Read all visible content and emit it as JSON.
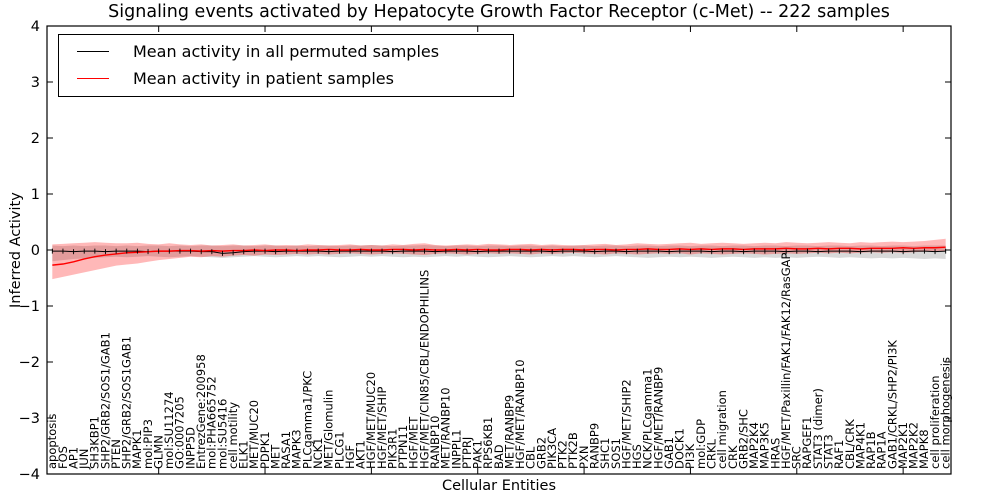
{
  "title": "Signaling events activated by Hepatocyte Growth Factor Receptor (c-Met) -- 222 samples",
  "legend": {
    "items": [
      {
        "label": "Mean activity in all permuted samples",
        "color": "#000000"
      },
      {
        "label": "Mean activity in patient samples",
        "color": "#ff0000"
      }
    ]
  },
  "axes": {
    "x_label": "Cellular Entities",
    "y_label": "Inferred Activity"
  },
  "chart_data": {
    "type": "line",
    "title": "Signaling events activated by Hepatocyte Growth Factor Receptor (c-Met) -- 222 samples",
    "xlabel": "Cellular Entities",
    "ylabel": "Inferred Activity",
    "ylim": [
      -4,
      4
    ],
    "y_ticks": [
      4,
      3,
      2,
      1,
      0,
      -1,
      -2,
      -3,
      -4
    ],
    "x_tick_indices": [
      10,
      20,
      30,
      40,
      50,
      60,
      70,
      80
    ],
    "grid": false,
    "legend_position": "upper left",
    "categories": [
      "apoptosis",
      "FOS",
      "AP1",
      "JUN",
      "SH3KBP1",
      "SHP2/GRB2/SOS1/GAB1",
      "PTEN",
      "SHP2/GRB2/SOS1GAB1",
      "MAPK1",
      "mol:PIP3",
      "GLMN",
      "mol:SU11274",
      "GO:0007205",
      "INPP5D",
      "EntrezGene:200958",
      "mol:PHA665752",
      "mol:SU5416",
      "cell motility",
      "ELK1",
      "MET/MUC20",
      "PDPK1",
      "MET",
      "RASA1",
      "MAPK3",
      "PLCgamma1/PKC",
      "NCK1",
      "MET/Glomulin",
      "PLCG1",
      "HGF",
      "AKT1",
      "HGF/MET/MUC20",
      "HGF/MET/SHIP",
      "PIK3R1",
      "PTPN11",
      "HGF/MET",
      "HGF/MET/CIN85/CBL/ENDOPHILINS",
      "RANBP10",
      "MET/RANBP10",
      "INPPL1",
      "PTPRJ",
      "PAK1",
      "RPS6KB1",
      "BAD",
      "MET/RANBP9",
      "HGF/MET/RANBP10",
      "CBL",
      "GRB2",
      "PIK3CA",
      "PTK2",
      "PTK2B",
      "PXN",
      "RANBP9",
      "SHC1",
      "SOS1",
      "HGF/MET/SHIP2",
      "HGS",
      "NCK/PLCgamma1",
      "HGF/MET/RANBP9",
      "GAB1",
      "DOCK1",
      "PI3K",
      "mol:GDP",
      "CRKL",
      "cell migration",
      "CRK",
      "GRB2/SHC",
      "MAP2K4",
      "MAP3K5",
      "HRAS",
      "HGF/MET/Paxillin/FAK1/FAK12/RasGAP",
      "SRC",
      "RAPGEF1",
      "STAT3 (dimer)",
      "STAT3",
      "RAF1",
      "CBL/CRK",
      "MAP4K1",
      "RAP1B",
      "RAP1A",
      "GAB1/CRKL/SHP2/PI3K",
      "MAP2K1",
      "MAP2K2",
      "MAPK8",
      "cell proliferation",
      "cell morphogenesis"
    ],
    "series": [
      {
        "name": "Mean activity in all permuted samples",
        "color": "#000000",
        "marker": "|",
        "values": [
          -0.02,
          -0.02,
          -0.03,
          -0.02,
          -0.02,
          -0.03,
          -0.02,
          -0.02,
          -0.02,
          -0.03,
          -0.02,
          -0.02,
          -0.02,
          -0.02,
          -0.03,
          -0.03,
          -0.06,
          -0.05,
          -0.03,
          -0.02,
          -0.02,
          -0.03,
          -0.02,
          -0.02,
          -0.02,
          -0.02,
          -0.03,
          -0.02,
          -0.02,
          -0.02,
          -0.02,
          -0.02,
          -0.03,
          -0.02,
          -0.02,
          -0.02,
          -0.03,
          -0.02,
          -0.02,
          -0.02,
          -0.03,
          -0.02,
          -0.02,
          -0.02,
          -0.02,
          -0.02,
          -0.02,
          -0.03,
          -0.02,
          -0.02,
          -0.02,
          -0.03,
          -0.02,
          -0.02,
          -0.03,
          -0.02,
          -0.02,
          -0.02,
          -0.03,
          -0.02,
          -0.02,
          -0.02,
          -0.03,
          -0.02,
          -0.02,
          -0.03,
          -0.02,
          -0.02,
          -0.02,
          -0.03,
          -0.02,
          -0.02,
          -0.03,
          -0.02,
          -0.02,
          -0.02,
          -0.03,
          -0.02,
          -0.02,
          -0.02,
          -0.03,
          -0.02,
          -0.02,
          -0.03,
          -0.02
        ]
      },
      {
        "name": "Mean activity in patient samples",
        "color": "#ff0000",
        "marker": null,
        "values": [
          -0.27,
          -0.25,
          -0.21,
          -0.16,
          -0.12,
          -0.09,
          -0.07,
          -0.05,
          -0.04,
          -0.03,
          -0.02,
          -0.02,
          -0.01,
          -0.01,
          -0.02,
          -0.01,
          -0.02,
          -0.01,
          -0.01,
          0.0,
          -0.01,
          0.0,
          0.0,
          -0.01,
          0.0,
          0.0,
          0.01,
          0.0,
          0.0,
          0.01,
          0.0,
          0.0,
          0.01,
          0.01,
          0.0,
          0.01,
          0.0,
          0.0,
          0.01,
          0.0,
          0.01,
          0.0,
          0.0,
          0.01,
          0.01,
          0.0,
          0.01,
          0.0,
          0.01,
          0.01,
          0.0,
          0.01,
          0.01,
          0.0,
          0.01,
          0.01,
          0.02,
          0.01,
          0.01,
          0.02,
          0.01,
          0.02,
          0.01,
          0.02,
          0.02,
          0.01,
          0.02,
          0.02,
          0.02,
          0.03,
          0.02,
          0.02,
          0.03,
          0.02,
          0.03,
          0.03,
          0.02,
          0.03,
          0.03,
          0.03,
          0.04,
          0.03,
          0.04,
          0.04,
          0.05
        ]
      }
    ],
    "bands": [
      {
        "name": "permuted-std-band",
        "color": "#000000",
        "opacity": 0.15,
        "upper": [
          0.08,
          0.07,
          0.08,
          0.07,
          0.08,
          0.08,
          0.07,
          0.08,
          0.07,
          0.08,
          0.08,
          0.07,
          0.08,
          0.07,
          0.08,
          0.08,
          0.07,
          0.08,
          0.08,
          0.07,
          0.08,
          0.08,
          0.07,
          0.08,
          0.07,
          0.08,
          0.08,
          0.07,
          0.08,
          0.08,
          0.09,
          0.08,
          0.07,
          0.08,
          0.08,
          0.09,
          0.08,
          0.07,
          0.08,
          0.08,
          0.07,
          0.08,
          0.08,
          0.07,
          0.08,
          0.08,
          0.07,
          0.08,
          0.07,
          0.08,
          0.08,
          0.07,
          0.08,
          0.08,
          0.07,
          0.08,
          0.08,
          0.07,
          0.08,
          0.08,
          0.07,
          0.08,
          0.08,
          0.07,
          0.08,
          0.08,
          0.07,
          0.08,
          0.08,
          0.07,
          0.08,
          0.08,
          0.07,
          0.08,
          0.08,
          0.07,
          0.08,
          0.08,
          0.07,
          0.08,
          0.08,
          0.07,
          0.08,
          0.08,
          0.08
        ],
        "lower": [
          -0.2,
          -0.18,
          -0.16,
          -0.15,
          -0.14,
          -0.13,
          -0.12,
          -0.13,
          -0.12,
          -0.11,
          -0.12,
          -0.13,
          -0.12,
          -0.11,
          -0.12,
          -0.13,
          -0.14,
          -0.13,
          -0.12,
          -0.11,
          -0.12,
          -0.13,
          -0.12,
          -0.11,
          -0.12,
          -0.11,
          -0.12,
          -0.13,
          -0.12,
          -0.11,
          -0.12,
          -0.11,
          -0.12,
          -0.13,
          -0.12,
          -0.13,
          -0.12,
          -0.11,
          -0.12,
          -0.11,
          -0.12,
          -0.13,
          -0.12,
          -0.11,
          -0.12,
          -0.13,
          -0.12,
          -0.11,
          -0.12,
          -0.11,
          -0.12,
          -0.13,
          -0.12,
          -0.11,
          -0.12,
          -0.13,
          -0.14,
          -0.13,
          -0.12,
          -0.13,
          -0.12,
          -0.13,
          -0.14,
          -0.13,
          -0.12,
          -0.13,
          -0.14,
          -0.13,
          -0.14,
          -0.13,
          -0.14,
          -0.13,
          -0.12,
          -0.13,
          -0.14,
          -0.13,
          -0.14,
          -0.15,
          -0.14,
          -0.15,
          -0.14,
          -0.15,
          -0.16,
          -0.15,
          -0.16
        ]
      },
      {
        "name": "patient-std-band",
        "color": "#ff0000",
        "opacity": 0.28,
        "upper": [
          0.1,
          0.11,
          0.12,
          0.13,
          0.14,
          0.13,
          0.12,
          0.12,
          0.13,
          0.11,
          0.1,
          0.12,
          0.1,
          0.09,
          0.1,
          0.08,
          0.09,
          0.1,
          0.08,
          0.09,
          0.1,
          0.08,
          0.09,
          0.08,
          0.1,
          0.09,
          0.08,
          0.09,
          0.1,
          0.08,
          0.09,
          0.08,
          0.1,
          0.09,
          0.11,
          0.12,
          0.09,
          0.08,
          0.09,
          0.1,
          0.09,
          0.11,
          0.1,
          0.09,
          0.1,
          0.11,
          0.09,
          0.1,
          0.09,
          0.08,
          0.09,
          0.1,
          0.11,
          0.09,
          0.1,
          0.12,
          0.11,
          0.1,
          0.11,
          0.12,
          0.13,
          0.11,
          0.12,
          0.13,
          0.12,
          0.11,
          0.12,
          0.13,
          0.12,
          0.14,
          0.13,
          0.12,
          0.13,
          0.14,
          0.13,
          0.12,
          0.14,
          0.13,
          0.14,
          0.15,
          0.14,
          0.15,
          0.16,
          0.18,
          0.2
        ],
        "lower": [
          -0.52,
          -0.48,
          -0.44,
          -0.4,
          -0.36,
          -0.32,
          -0.28,
          -0.26,
          -0.24,
          -0.21,
          -0.18,
          -0.16,
          -0.14,
          -0.12,
          -0.13,
          -0.11,
          -0.12,
          -0.1,
          -0.09,
          -0.1,
          -0.08,
          -0.09,
          -0.08,
          -0.07,
          -0.08,
          -0.07,
          -0.08,
          -0.07,
          -0.06,
          -0.07,
          -0.08,
          -0.07,
          -0.06,
          -0.07,
          -0.08,
          -0.09,
          -0.07,
          -0.06,
          -0.07,
          -0.08,
          -0.07,
          -0.06,
          -0.07,
          -0.06,
          -0.07,
          -0.08,
          -0.06,
          -0.07,
          -0.06,
          -0.05,
          -0.06,
          -0.07,
          -0.08,
          -0.06,
          -0.07,
          -0.08,
          -0.07,
          -0.06,
          -0.07,
          -0.06,
          -0.08,
          -0.06,
          -0.07,
          -0.08,
          -0.07,
          -0.06,
          -0.07,
          -0.08,
          -0.07,
          -0.06,
          -0.07,
          -0.06,
          -0.05,
          -0.06,
          -0.05,
          -0.06,
          -0.05,
          -0.04,
          -0.05,
          -0.04,
          -0.05,
          -0.04,
          -0.03,
          -0.03,
          -0.02
        ]
      }
    ]
  }
}
